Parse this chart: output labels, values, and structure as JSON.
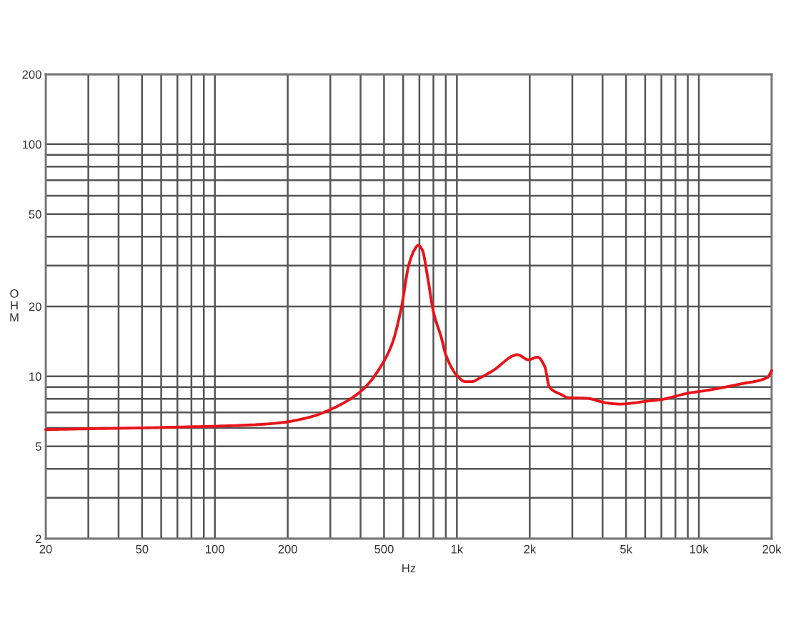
{
  "chart_data": {
    "type": "line",
    "xlabel": "Hz",
    "ylabel": "OHM",
    "log": "xy",
    "grid": true,
    "marker": "none",
    "line_style": "solid",
    "xlim": [
      20,
      20000
    ],
    "ylim": [
      2,
      200
    ],
    "xticks": [
      20,
      {
        "value": 30,
        "label": null
      },
      {
        "value": 40,
        "label": null
      },
      50,
      {
        "value": 60,
        "label": null
      },
      {
        "value": 70,
        "label": null
      },
      {
        "value": 80,
        "label": null
      },
      {
        "value": 90,
        "label": null
      },
      100,
      200,
      {
        "value": 300,
        "label": null
      },
      {
        "value": 400,
        "label": null
      },
      500,
      {
        "value": 600,
        "label": null
      },
      {
        "value": 700,
        "label": null
      },
      {
        "value": 800,
        "label": null
      },
      {
        "value": 900,
        "label": null
      },
      {
        "value": 1000,
        "label": "1k"
      },
      {
        "value": 2000,
        "label": "2k"
      },
      {
        "value": 3000,
        "label": null
      },
      {
        "value": 4000,
        "label": null
      },
      {
        "value": 5000,
        "label": "5k"
      },
      {
        "value": 6000,
        "label": null
      },
      {
        "value": 7000,
        "label": null
      },
      {
        "value": 8000,
        "label": null
      },
      {
        "value": 9000,
        "label": null
      },
      {
        "value": 10000,
        "label": "10k"
      },
      {
        "value": 20000,
        "label": "20k"
      }
    ],
    "yticks": [
      2,
      {
        "value": 3,
        "label": null
      },
      {
        "value": 4,
        "label": null
      },
      5,
      {
        "value": 6,
        "label": null
      },
      {
        "value": 7,
        "label": null
      },
      {
        "value": 8,
        "label": null
      },
      {
        "value": 9,
        "label": null
      },
      10,
      20,
      {
        "value": 30,
        "label": null
      },
      {
        "value": 40,
        "label": null
      },
      50,
      {
        "value": 60,
        "label": null
      },
      {
        "value": 70,
        "label": null
      },
      {
        "value": 80,
        "label": null
      },
      {
        "value": 90,
        "label": null
      },
      100,
      200
    ],
    "x": [
      20,
      30,
      50,
      70,
      100,
      150,
      190,
      250,
      300,
      370,
      423,
      484,
      541,
      591,
      632,
      667,
      692,
      720,
      756,
      800,
      864,
      900,
      1000,
      1080,
      1155,
      1235,
      1412,
      1780,
      1973,
      2158,
      2308,
      2411,
      2695,
      2884,
      3449,
      4120,
      4709,
      6160,
      7000,
      9200,
      10000,
      15030,
      19210,
      20000
    ],
    "series": [
      {
        "color": "#e8141a",
        "values": [
          5.9,
          5.95,
          6.0,
          6.05,
          6.1,
          6.2,
          6.33,
          6.7,
          7.2,
          8.1,
          9.1,
          11.0,
          13.9,
          20,
          30,
          35,
          36.7,
          35,
          27,
          19,
          14.6,
          12.4,
          10.1,
          9.5,
          9.5,
          9.8,
          10.6,
          12.4,
          11.8,
          12.1,
          11.0,
          9.0,
          8.36,
          8.1,
          8.05,
          7.7,
          7.6,
          7.83,
          7.95,
          8.5,
          8.6,
          9.3,
          9.9,
          10.6
        ]
      }
    ]
  }
}
